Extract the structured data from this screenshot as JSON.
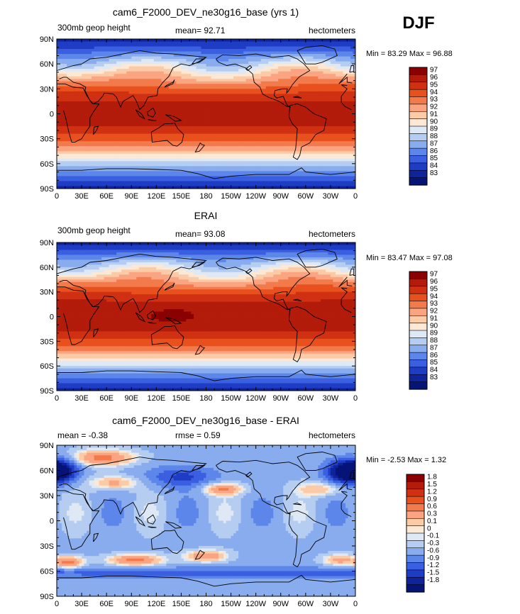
{
  "season": "DJF",
  "chart_data": [
    {
      "type": "heatmap",
      "title": "cam6_F2000_DEV_ne30g16_base (yrs 1)",
      "left_label": "300mb geop height",
      "center_label": "mean=  92.71",
      "right_label": "hectometers",
      "min_max_label": "Min =  83.29 Max =  96.88",
      "min": 83.29,
      "max": 96.88,
      "x_ticks": [
        "0",
        "30E",
        "60E",
        "90E",
        "120E",
        "150E",
        "180",
        "150W",
        "120W",
        "90W",
        "60W",
        "30W",
        "0"
      ],
      "y_ticks": [
        "90N",
        "60N",
        "30N",
        "0",
        "30S",
        "60S",
        "90S"
      ],
      "colorbar_labels": [
        "97",
        "96",
        "95",
        "94",
        "93",
        "92",
        "91",
        "90",
        "89",
        "88",
        "87",
        "86",
        "85",
        "84",
        "83"
      ],
      "colorbar_colors": [
        "#8b0000",
        "#b31b0a",
        "#d03112",
        "#e8511e",
        "#f27a4b",
        "#fba482",
        "#fbcaa6",
        "#fbe8d5",
        "#dfe8f5",
        "#b5cdf0",
        "#88acee",
        "#5d86ea",
        "#3a5fe0",
        "#1f3cc4",
        "#0f239b",
        "#061377"
      ],
      "field": "z300_model"
    },
    {
      "type": "heatmap",
      "title": "ERAI",
      "left_label": "300mb geop height",
      "center_label": "mean=  93.08",
      "right_label": "hectometers",
      "min_max_label": "Min =  83.47 Max =  97.08",
      "min": 83.47,
      "max": 97.08,
      "x_ticks": [
        "0",
        "30E",
        "60E",
        "90E",
        "120E",
        "150E",
        "180",
        "150W",
        "120W",
        "90W",
        "60W",
        "30W",
        "0"
      ],
      "y_ticks": [
        "90N",
        "60N",
        "30N",
        "0",
        "30S",
        "60S",
        "90S"
      ],
      "colorbar_labels": [
        "97",
        "96",
        "95",
        "94",
        "93",
        "92",
        "91",
        "90",
        "89",
        "88",
        "87",
        "86",
        "85",
        "84",
        "83"
      ],
      "colorbar_colors": [
        "#8b0000",
        "#b31b0a",
        "#d03112",
        "#e8511e",
        "#f27a4b",
        "#fba482",
        "#fbcaa6",
        "#fbe8d5",
        "#dfe8f5",
        "#b5cdf0",
        "#88acee",
        "#5d86ea",
        "#3a5fe0",
        "#1f3cc4",
        "#0f239b",
        "#061377"
      ],
      "field": "z300_erai"
    },
    {
      "type": "heatmap",
      "title": "cam6_F2000_DEV_ne30g16_base - ERAI",
      "left_label": "mean =  -0.38",
      "center_label": "rmse =    0.59",
      "right_label": "hectometers",
      "min_max_label": "Min =  -2.53 Max =   1.32",
      "min": -2.53,
      "max": 1.32,
      "x_ticks": [
        "0",
        "30E",
        "60E",
        "90E",
        "120E",
        "150E",
        "180",
        "150W",
        "120W",
        "90W",
        "60W",
        "30W",
        "0"
      ],
      "y_ticks": [
        "90N",
        "60N",
        "30N",
        "0",
        "30S",
        "60S",
        "90S"
      ],
      "colorbar_labels": [
        "1.8",
        "1.5",
        "1.2",
        "0.9",
        "0.6",
        "0.3",
        "0.1",
        "0",
        "-0.1",
        "-0.3",
        "-0.6",
        "-0.9",
        "-1.2",
        "-1.5",
        "-1.8"
      ],
      "colorbar_colors": [
        "#8b0000",
        "#b31b0a",
        "#d03112",
        "#e8511e",
        "#f27a4b",
        "#fba482",
        "#fbcaa6",
        "#fbe8d5",
        "#dfe8f5",
        "#b5cdf0",
        "#88acee",
        "#5d86ea",
        "#3a5fe0",
        "#1f3cc4",
        "#0f239b",
        "#061377"
      ],
      "field": "z300_diff"
    }
  ]
}
